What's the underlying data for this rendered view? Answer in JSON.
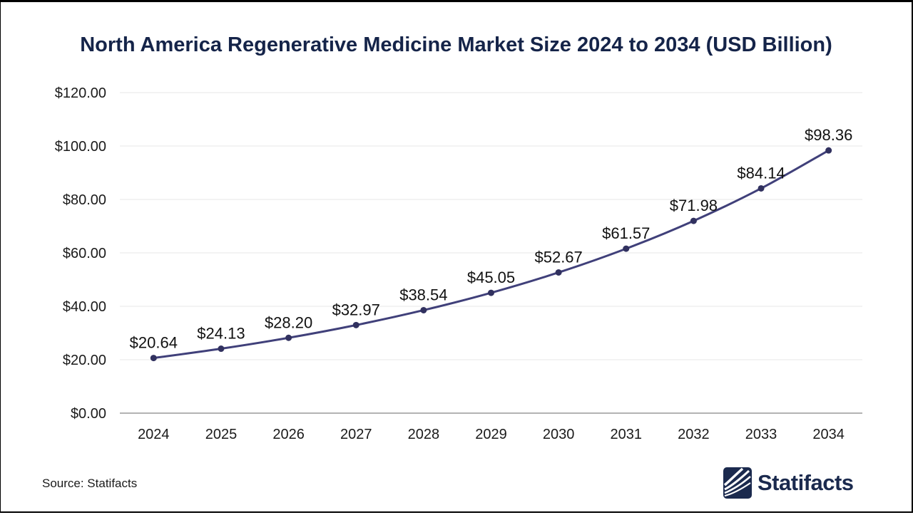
{
  "page": {
    "background": "#ffffff",
    "border_color": "#000000"
  },
  "title": "North America Regenerative Medicine Market Size 2024 to 2034 (USD Billion)",
  "source": "Source: Statifacts",
  "brand": {
    "name": "Statifacts",
    "logo_icon": "statifacts-waves-logo-icon",
    "color": "#1b2a4e"
  },
  "chart_data": {
    "type": "line",
    "title": "North America Regenerative Medicine Market Size 2024 to 2034 (USD Billion)",
    "categories": [
      "2024",
      "2025",
      "2026",
      "2027",
      "2028",
      "2029",
      "2030",
      "2031",
      "2032",
      "2033",
      "2034"
    ],
    "values": [
      20.64,
      24.13,
      28.2,
      32.97,
      38.54,
      45.05,
      52.67,
      61.57,
      71.98,
      84.14,
      98.36
    ],
    "labels": [
      "$20.64",
      "$24.13",
      "$28.20",
      "$32.97",
      "$38.54",
      "$45.05",
      "$52.67",
      "$61.57",
      "$71.98",
      "$84.14",
      "$98.36"
    ],
    "y_ticks": [
      "$0.00",
      "$20.00",
      "$40.00",
      "$60.00",
      "$80.00",
      "$100.00",
      "$120.00"
    ],
    "ylim": [
      0,
      120
    ],
    "y_step": 20,
    "xlabel": "",
    "ylabel": "",
    "grid": true,
    "legend": "none",
    "smooth": true,
    "line_color": "#40407a",
    "point_color": "#31315f",
    "label_color": "#111111",
    "grid_color": "#efefef",
    "axis_line_color": "#b3b3b3",
    "tick_label_color": "#1a1a1a"
  }
}
